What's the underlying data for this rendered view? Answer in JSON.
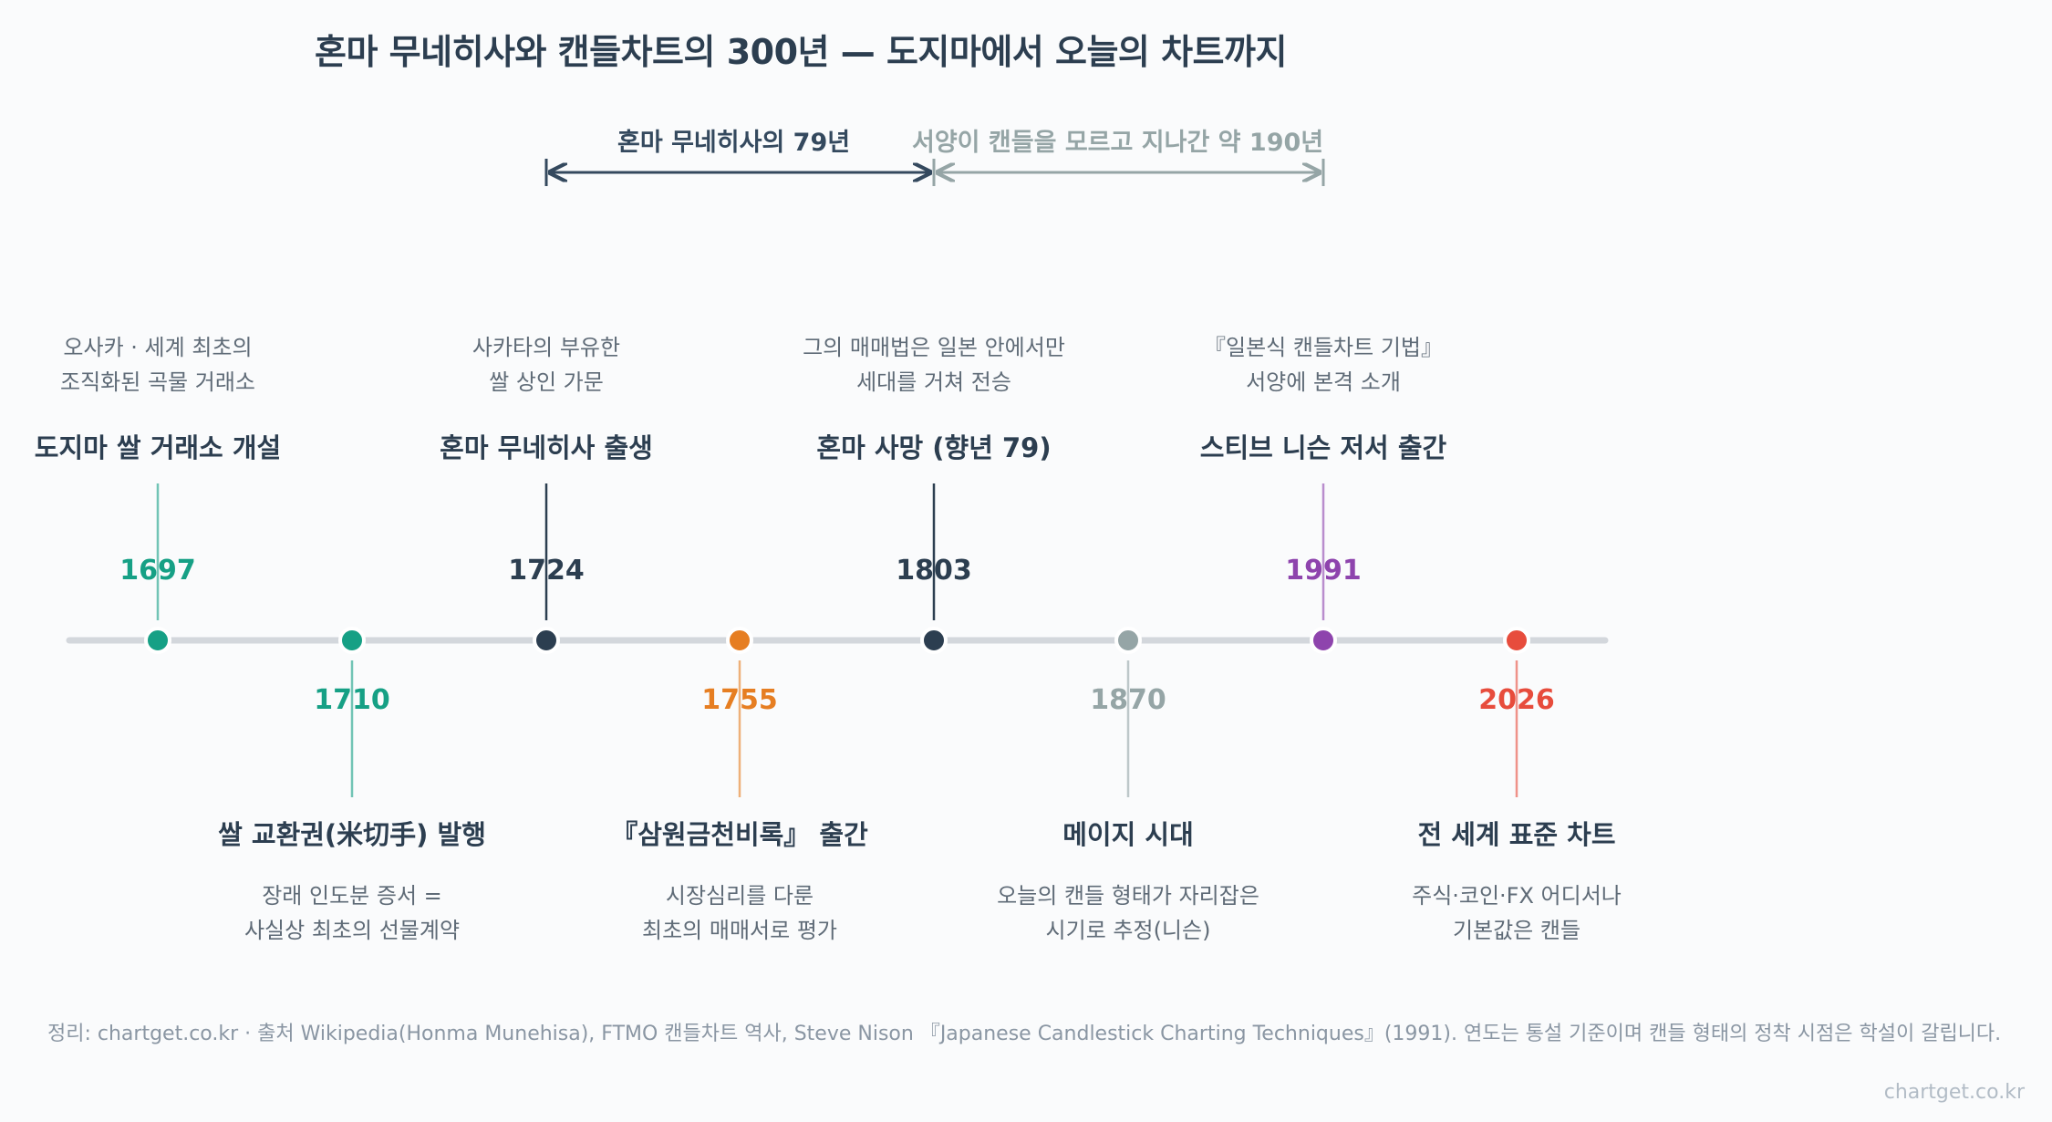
{
  "title": "혼마 무네히사와 캔들차트의 300년 — 도지마에서 오늘의 차트까지",
  "spans": [
    {
      "label": "혼마 무네히사의 79년",
      "color": "#34495e"
    },
    {
      "label": "서양이 캔들을 모르고 지나간 약 190년",
      "color": "#95a5a6"
    }
  ],
  "events": [
    {
      "year": "1697",
      "title": "도지마 쌀 거래소 개설",
      "desc": "오사카 · 세계 최초의\n조직화된 곡물 거래소",
      "color": "#16a085",
      "side": "top"
    },
    {
      "year": "1710",
      "title": "쌀 교환권(米切手) 발행",
      "desc": "장래 인도분 증서 =\n사실상 최초의 선물계약",
      "color": "#16a085",
      "side": "bottom"
    },
    {
      "year": "1724",
      "title": "혼마 무네히사 출생",
      "desc": "사카타의 부유한\n쌀 상인 가문",
      "color": "#2c3e50",
      "side": "top"
    },
    {
      "year": "1755",
      "title": "『삼원금천비록』 출간",
      "desc": "시장심리를 다룬\n최초의 매매서로 평가",
      "color": "#e67e22",
      "side": "bottom"
    },
    {
      "year": "1803",
      "title": "혼마 사망 (향년 79)",
      "desc": "그의 매매법은 일본 안에서만\n세대를 거쳐 전승",
      "color": "#2c3e50",
      "side": "top"
    },
    {
      "year": "1870",
      "title": "메이지 시대",
      "desc": "오늘의 캔들 형태가 자리잡은\n시기로 추정(니슨)",
      "color": "#95a5a6",
      "side": "bottom"
    },
    {
      "year": "1991",
      "title": "스티브 니슨 저서 출간",
      "desc": "『일본식 캔들차트 기법』\n서양에 본격 소개",
      "color": "#8e44ad",
      "side": "top"
    },
    {
      "year": "2026",
      "title": "전 세계 표준 차트",
      "desc": "주식·코인·FX 어디서나\n기본값은 캔들",
      "color": "#e74c3c",
      "side": "bottom"
    }
  ],
  "footnote": "정리: chartget.co.kr · 출처 Wikipedia(Honma Munehisa), FTMO 캔들차트 역사, Steve Nison 『Japanese Candlestick Charting Techniques』(1991). 연도는 통설 기준이며 캔들 형태의 정착 시점은 학설이 갈립니다.",
  "watermark": "chartget.co.kr"
}
